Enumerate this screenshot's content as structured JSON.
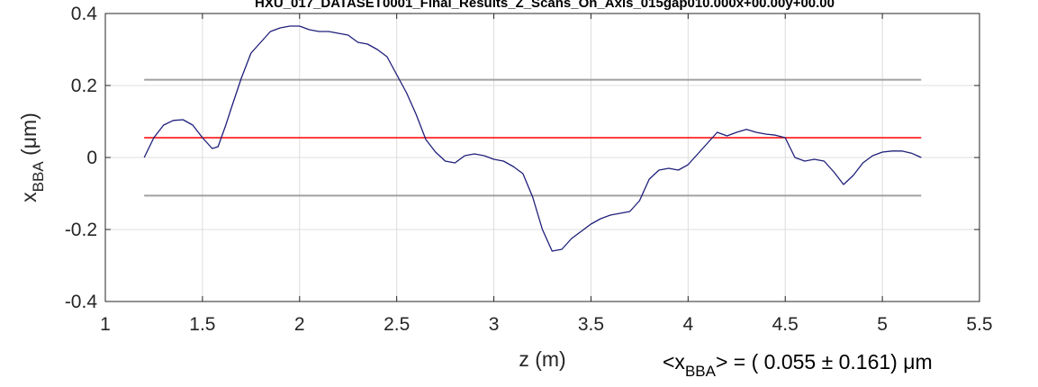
{
  "chart_data": {
    "type": "line",
    "title": "HXU_017_DATASET0001_Final_Results_Z_Scans_On_Axis_015gap010.000x+00.00y+00.00",
    "xlabel": "z (m)",
    "ylabel": {
      "main": "x",
      "sub": "BBA",
      "unit": " (μm)"
    },
    "xlim": [
      1,
      5.5
    ],
    "ylim": [
      -0.4,
      0.4
    ],
    "xticks": [
      "1",
      "1.5",
      "2",
      "2.5",
      "3",
      "3.5",
      "4",
      "4.5",
      "5",
      "5.5"
    ],
    "yticks": [
      "-0.4",
      "-0.2",
      "0",
      "0.2",
      "0.4"
    ],
    "grid": true,
    "mean_line": {
      "y": 0.055,
      "color": "#ff0000"
    },
    "band_lines": [
      {
        "y": 0.216,
        "color": "#a0a0a0"
      },
      {
        "y": -0.106,
        "color": "#a0a0a0"
      }
    ],
    "series_color": "#1f1f7a",
    "stat_label": {
      "prefix": "<x",
      "sub": "BBA",
      "suffix": "> = (  0.055 ± 0.161) μm"
    },
    "series": [
      {
        "x": [
          1.2,
          1.25,
          1.3,
          1.35,
          1.4,
          1.45,
          1.5,
          1.55,
          1.58,
          1.62,
          1.65,
          1.7,
          1.75,
          1.8,
          1.85,
          1.9,
          1.95,
          2.0,
          2.05,
          2.1,
          2.15,
          2.2,
          2.25,
          2.3,
          2.35,
          2.4,
          2.45,
          2.5,
          2.55,
          2.6,
          2.65,
          2.7,
          2.75,
          2.8,
          2.85,
          2.9,
          2.95,
          3.0,
          3.05,
          3.1,
          3.15,
          3.2,
          3.25,
          3.3,
          3.35,
          3.4,
          3.45,
          3.5,
          3.55,
          3.6,
          3.65,
          3.7,
          3.75,
          3.8,
          3.85,
          3.9,
          3.95,
          4.0,
          4.05,
          4.1,
          4.15,
          4.2,
          4.25,
          4.3,
          4.35,
          4.4,
          4.45,
          4.5,
          4.55,
          4.6,
          4.65,
          4.7,
          4.75,
          4.8,
          4.85,
          4.9,
          4.95,
          5.0,
          5.05,
          5.1,
          5.15,
          5.2
        ],
        "y": [
          0.0,
          0.055,
          0.09,
          0.103,
          0.105,
          0.09,
          0.055,
          0.025,
          0.03,
          0.09,
          0.14,
          0.22,
          0.29,
          0.32,
          0.35,
          0.36,
          0.365,
          0.365,
          0.355,
          0.35,
          0.35,
          0.345,
          0.34,
          0.32,
          0.315,
          0.3,
          0.28,
          0.23,
          0.18,
          0.12,
          0.05,
          0.015,
          -0.01,
          -0.015,
          0.005,
          0.01,
          0.005,
          -0.005,
          -0.01,
          -0.025,
          -0.045,
          -0.11,
          -0.2,
          -0.26,
          -0.255,
          -0.225,
          -0.205,
          -0.185,
          -0.17,
          -0.16,
          -0.155,
          -0.15,
          -0.12,
          -0.06,
          -0.035,
          -0.03,
          -0.035,
          -0.02,
          0.01,
          0.04,
          0.07,
          0.06,
          0.07,
          0.078,
          0.07,
          0.065,
          0.062,
          0.055,
          0.0,
          -0.01,
          -0.005,
          -0.01,
          -0.04,
          -0.075,
          -0.05,
          -0.015,
          0.005,
          0.015,
          0.018,
          0.018,
          0.012,
          0.0
        ]
      }
    ]
  }
}
